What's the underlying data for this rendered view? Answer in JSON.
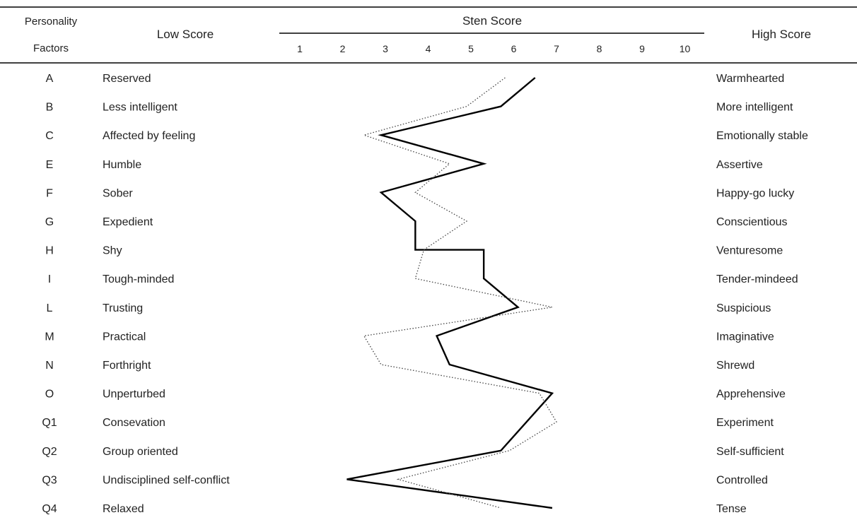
{
  "headers": {
    "factor_line1": "Personality",
    "factor_line2": "Factors",
    "low": "Low Score",
    "sten": "Sten Score",
    "high": "High Score"
  },
  "chart_data": {
    "type": "line",
    "orientation": "horizontal-profile",
    "x_ticks": [
      "1",
      "2",
      "3",
      "4",
      "5",
      "6",
      "7",
      "8",
      "9",
      "10"
    ],
    "xlim": [
      1,
      10
    ],
    "grid": false,
    "factors": [
      "A",
      "B",
      "C",
      "E",
      "F",
      "G",
      "H",
      "I",
      "L",
      "M",
      "N",
      "O",
      "Q1",
      "Q2",
      "Q3",
      "Q4"
    ],
    "low_labels": [
      "Reserved",
      "Less intelligent",
      "Affected by feeling",
      "Humble",
      "Sober",
      "Expedient",
      "Shy",
      "Tough-minded",
      "Trusting",
      "Practical",
      "Forthright",
      "Unperturbed",
      "Consevation",
      "Group oriented",
      "Undisciplined self-conflict",
      "Relaxed"
    ],
    "high_labels": [
      "Warmhearted",
      "More intelligent",
      "Emotionally stable",
      "Assertive",
      "Happy-go lucky",
      "Conscientious",
      "Venturesome",
      "Tender-mindeed",
      "Suspicious",
      "Imaginative",
      "Shrewd",
      "Apprehensive",
      "Experiment",
      "Self-sufficient",
      "Controlled",
      "Tense"
    ],
    "series": [
      {
        "style": "solid",
        "color": "#000000",
        "values": [
          6.5,
          5.7,
          2.9,
          5.3,
          2.9,
          3.7,
          5.3,
          5.3,
          6.1,
          4.2,
          4.5,
          6.9,
          6.3,
          5.7,
          2.1,
          6.9
        ],
        "step_rows": [
          6,
          7
        ]
      },
      {
        "style": "dotted",
        "color": "#444444",
        "values": [
          5.8,
          4.9,
          2.5,
          4.5,
          3.7,
          4.9,
          3.9,
          3.7,
          6.9,
          2.5,
          2.9,
          6.6,
          7.0,
          5.9,
          3.3,
          5.7
        ],
        "step_rows": []
      }
    ]
  }
}
